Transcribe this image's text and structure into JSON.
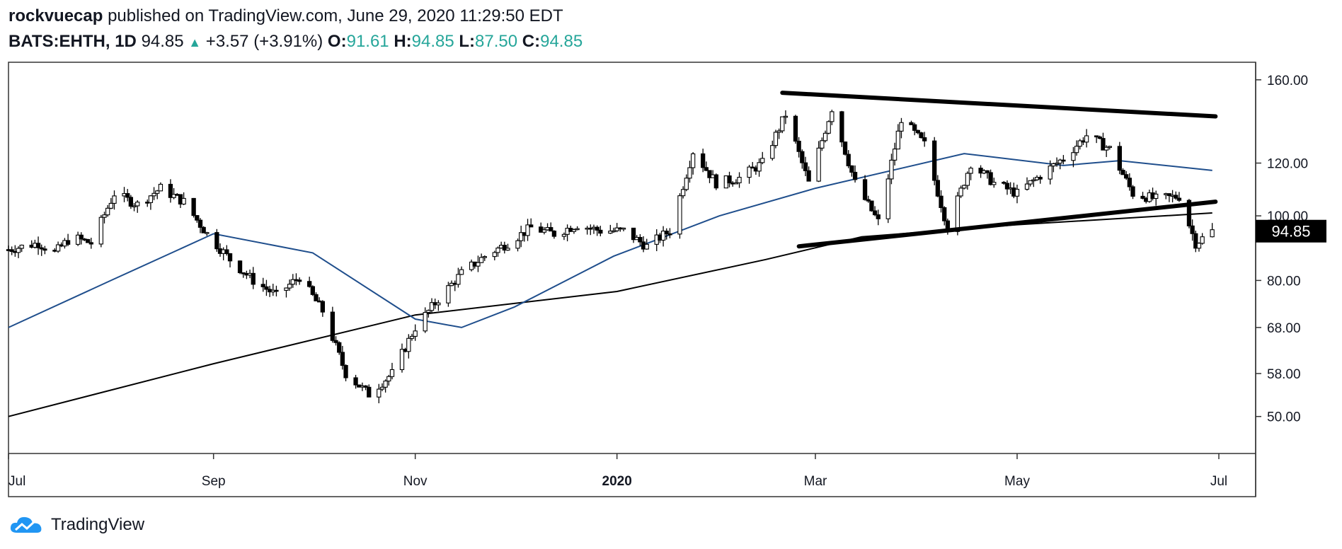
{
  "header": {
    "author": "rockvuecap",
    "published_text": "published on TradingView.com, June 29, 2020 11:29:50 EDT",
    "symbol": "BATS:EHTH, 1D",
    "last": "94.85",
    "change": "+3.57 (+3.91%)",
    "o_label": "O:",
    "o_value": "91.61",
    "h_label": "H:",
    "h_value": "94.85",
    "l_label": "L:",
    "l_value": "87.50",
    "c_label": "C:",
    "c_value": "94.85",
    "up_icon": "triangle-up-icon"
  },
  "footer": {
    "brand": "TradingView",
    "logo_icon": "tradingview-cloud-logo-icon"
  },
  "colors": {
    "up": "#26a69a",
    "candle": "#000000",
    "ma50": "#1f4e8c",
    "ma200": "#000000",
    "price_label_bg": "#000000"
  },
  "chart_data": {
    "type": "candlestick",
    "title": "BATS:EHTH, 1D",
    "y_scale": "log",
    "ylim": [
      44,
      170
    ],
    "y_ticks": [
      50,
      58,
      68,
      80,
      100,
      120,
      160
    ],
    "y_tick_labels": [
      "50.00",
      "58.00",
      "68.00",
      "80.00",
      "100.00",
      "120.00",
      "160.00"
    ],
    "x_tick_labels": [
      "Jul",
      "Sep",
      "Nov",
      "2020",
      "Mar",
      "May",
      "Jul"
    ],
    "x_tick_dates": [
      "2019-07-01",
      "2019-09-01",
      "2019-11-01",
      "2020-01-01",
      "2020-03-01",
      "2020-05-01",
      "2020-07-01"
    ],
    "x_range": [
      "2019-07-01",
      "2020-07-01"
    ],
    "last_price_label": "94.85",
    "price_path": [
      [
        "2019-07-01",
        89
      ],
      [
        "2019-07-10",
        91
      ],
      [
        "2019-07-15",
        88
      ],
      [
        "2019-07-20",
        93
      ],
      [
        "2019-07-26",
        91
      ],
      [
        "2019-08-02",
        108
      ],
      [
        "2019-08-09",
        104
      ],
      [
        "2019-08-16",
        110
      ],
      [
        "2019-08-23",
        105
      ],
      [
        "2019-08-30",
        94
      ],
      [
        "2019-09-06",
        86
      ],
      [
        "2019-09-13",
        80
      ],
      [
        "2019-09-20",
        76
      ],
      [
        "2019-09-27",
        81
      ],
      [
        "2019-10-04",
        72
      ],
      [
        "2019-10-11",
        58
      ],
      [
        "2019-10-18",
        54
      ],
      [
        "2019-10-25",
        58
      ],
      [
        "2019-11-01",
        68
      ],
      [
        "2019-11-08",
        75
      ],
      [
        "2019-11-15",
        82
      ],
      [
        "2019-11-22",
        87
      ],
      [
        "2019-11-29",
        91
      ],
      [
        "2019-12-06",
        96
      ],
      [
        "2019-12-13",
        94
      ],
      [
        "2019-12-20",
        97
      ],
      [
        "2019-12-27",
        95
      ],
      [
        "2020-01-03",
        95
      ],
      [
        "2020-01-10",
        90
      ],
      [
        "2020-01-17",
        95
      ],
      [
        "2020-01-24",
        125
      ],
      [
        "2020-01-31",
        112
      ],
      [
        "2020-02-07",
        114
      ],
      [
        "2020-02-14",
        120
      ],
      [
        "2020-02-21",
        142
      ],
      [
        "2020-02-28",
        112
      ],
      [
        "2020-03-06",
        145
      ],
      [
        "2020-03-13",
        112
      ],
      [
        "2020-03-20",
        98
      ],
      [
        "2020-03-27",
        140
      ],
      [
        "2020-04-03",
        128
      ],
      [
        "2020-04-10",
        96
      ],
      [
        "2020-04-17",
        120
      ],
      [
        "2020-04-24",
        112
      ],
      [
        "2020-05-01",
        108
      ],
      [
        "2020-05-08",
        115
      ],
      [
        "2020-05-15",
        122
      ],
      [
        "2020-05-22",
        132
      ],
      [
        "2020-05-29",
        126
      ],
      [
        "2020-06-05",
        108
      ],
      [
        "2020-06-12",
        106
      ],
      [
        "2020-06-19",
        107
      ],
      [
        "2020-06-24",
        91
      ],
      [
        "2020-06-29",
        94.85
      ]
    ],
    "ma50": [
      [
        "2019-07-01",
        68
      ],
      [
        "2019-08-01",
        80
      ],
      [
        "2019-09-01",
        94
      ],
      [
        "2019-10-01",
        88
      ],
      [
        "2019-11-01",
        70
      ],
      [
        "2019-11-15",
        68
      ],
      [
        "2019-12-01",
        73
      ],
      [
        "2019-12-31",
        87
      ],
      [
        "2020-02-01",
        100
      ],
      [
        "2020-03-01",
        110
      ],
      [
        "2020-04-15",
        124
      ],
      [
        "2020-05-15",
        119
      ],
      [
        "2020-06-01",
        121
      ],
      [
        "2020-06-29",
        117
      ]
    ],
    "ma200": [
      [
        "2019-07-01",
        50
      ],
      [
        "2019-09-01",
        60
      ],
      [
        "2019-11-01",
        71
      ],
      [
        "2020-01-01",
        77
      ],
      [
        "2020-02-15",
        86
      ],
      [
        "2020-03-15",
        93
      ],
      [
        "2020-05-01",
        97
      ],
      [
        "2020-06-29",
        101
      ]
    ],
    "trendlines": [
      {
        "name": "upper-resistance",
        "from": [
          "2020-02-20",
          153
        ],
        "to": [
          "2020-06-30",
          141
        ]
      },
      {
        "name": "lower-support",
        "from": [
          "2020-02-25",
          90
        ],
        "to": [
          "2020-06-30",
          105
        ]
      }
    ]
  }
}
